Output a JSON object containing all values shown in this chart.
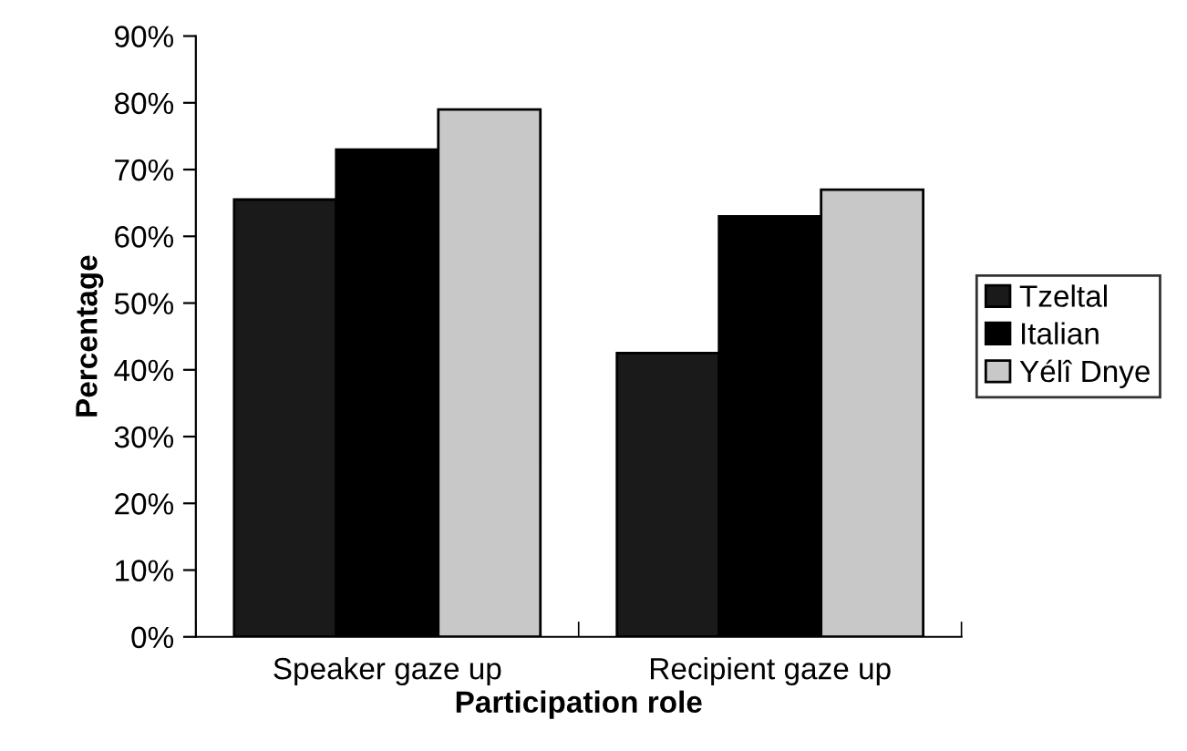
{
  "chart_data": {
    "type": "bar",
    "xlabel": "Participation role",
    "ylabel": "Percentage",
    "categories": [
      "Speaker gaze up",
      "Recipient gaze up"
    ],
    "series": [
      {
        "name": "Tzeltal",
        "color": "#1a1a1a",
        "values": [
          65.5,
          42.5
        ]
      },
      {
        "name": "Italian",
        "color": "#000000",
        "values": [
          73,
          63
        ]
      },
      {
        "name": "Yélî Dnye",
        "color": "#c8c8c8",
        "values": [
          79,
          67
        ]
      }
    ],
    "ylim": [
      0,
      90
    ],
    "yticks": [
      {
        "value": 0,
        "label": "0%"
      },
      {
        "value": 10,
        "label": "10%"
      },
      {
        "value": 20,
        "label": "20%"
      },
      {
        "value": 30,
        "label": "30%"
      },
      {
        "value": 40,
        "label": "40%"
      },
      {
        "value": 50,
        "label": "50%"
      },
      {
        "value": 60,
        "label": "60%"
      },
      {
        "value": 70,
        "label": "70%"
      },
      {
        "value": 80,
        "label": "80%"
      },
      {
        "value": 90,
        "label": "90%"
      }
    ],
    "grid": false,
    "legend": "right"
  }
}
